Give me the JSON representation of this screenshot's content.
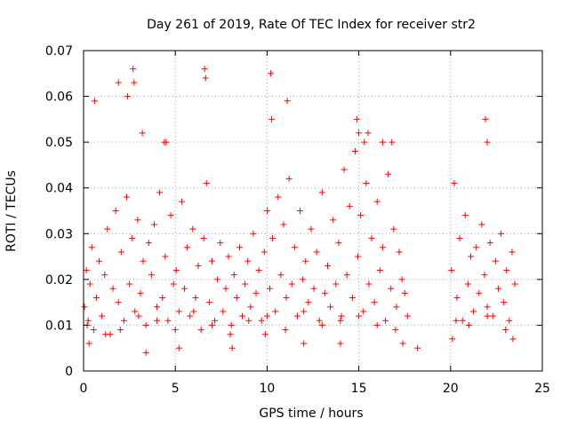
{
  "chart_data": {
    "type": "scatter",
    "title": "Day 261 of 2019, Rate Of TEC Index for receiver str2",
    "xlabel": "GPS time / hours",
    "ylabel": "ROTI / TECUs",
    "xlim": [
      0,
      25
    ],
    "ylim": [
      0,
      0.07
    ],
    "x_ticks": [
      0,
      5,
      10,
      15,
      20,
      25
    ],
    "y_ticks": [
      0,
      0.01,
      0.02,
      0.03,
      0.04,
      0.05,
      0.06,
      0.07
    ],
    "x_tick_labels": [
      "0",
      "5",
      "10",
      "15",
      "20",
      "25"
    ],
    "y_tick_labels": [
      "0",
      "0.01",
      "0.02",
      "0.03",
      "0.04",
      "0.05",
      "0.06",
      "0.07"
    ],
    "grid": true,
    "marker": "+",
    "color": "#ff0000",
    "series": [
      {
        "name": "str2",
        "x": [
          0.05,
          0.15,
          0.25,
          0.35,
          0.45,
          0.55,
          0.7,
          0.85,
          1.0,
          1.15,
          1.3,
          1.45,
          1.6,
          1.75,
          1.9,
          2.05,
          2.2,
          2.35,
          2.5,
          2.65,
          2.8,
          2.95,
          3.1,
          3.25,
          3.4,
          3.55,
          3.7,
          3.85,
          4.0,
          4.15,
          4.3,
          4.45,
          4.6,
          4.75,
          4.9,
          5.05,
          5.2,
          5.35,
          5.5,
          5.65,
          5.8,
          5.95,
          6.1,
          6.25,
          6.4,
          6.55,
          6.7,
          6.85,
          7.0,
          7.15,
          7.3,
          7.45,
          7.6,
          7.75,
          7.9,
          8.05,
          8.2,
          8.35,
          8.5,
          8.65,
          8.8,
          8.95,
          9.1,
          9.25,
          9.4,
          9.55,
          9.7,
          9.85,
          10.0,
          10.15,
          10.3,
          10.45,
          10.6,
          10.75,
          10.9,
          11.05,
          11.2,
          11.35,
          11.5,
          11.65,
          11.8,
          11.95,
          12.1,
          12.25,
          12.4,
          12.55,
          12.7,
          12.85,
          13.0,
          13.15,
          13.3,
          13.45,
          13.6,
          13.75,
          13.9,
          14.05,
          14.2,
          14.35,
          14.5,
          14.65,
          14.8,
          14.95,
          15.1,
          15.25,
          15.4,
          15.55,
          15.7,
          15.85,
          16.0,
          16.15,
          16.3,
          16.45,
          16.6,
          16.75,
          16.9,
          17.05,
          17.2,
          17.35,
          17.5,
          17.65,
          20.05,
          20.2,
          20.35,
          20.5,
          20.65,
          20.8,
          20.95,
          21.1,
          21.25,
          21.4,
          21.55,
          21.7,
          21.85,
          22.0,
          22.15,
          22.3,
          22.45,
          22.6,
          22.75,
          22.9,
          23.05,
          23.2,
          23.35,
          23.5,
          0.6,
          1.9,
          2.7,
          2.75,
          6.6,
          6.65,
          10.2,
          10.25,
          11.1,
          14.9,
          15.0,
          21.9,
          22.0,
          2.4,
          3.2,
          4.4,
          4.5,
          15.3,
          15.5,
          16.3,
          16.8,
          0.3,
          5.2,
          9.9,
          12.0,
          18.2,
          20.1,
          23.4,
          3.4,
          8.1,
          14.0,
          17.4,
          0.2,
          1.2,
          2.0,
          3.0,
          4.0,
          5.0,
          6.0,
          7.0,
          8.0,
          9.0,
          10.0,
          11.0,
          12.0,
          13.0,
          14.0,
          15.0,
          16.0,
          17.0,
          20.3,
          21.0,
          22.0,
          23.0
        ],
        "y": [
          0.014,
          0.022,
          0.011,
          0.019,
          0.027,
          0.009,
          0.016,
          0.024,
          0.012,
          0.021,
          0.031,
          0.008,
          0.018,
          0.035,
          0.015,
          0.026,
          0.011,
          0.038,
          0.019,
          0.029,
          0.013,
          0.033,
          0.017,
          0.024,
          0.01,
          0.028,
          0.021,
          0.032,
          0.014,
          0.039,
          0.016,
          0.025,
          0.011,
          0.034,
          0.019,
          0.022,
          0.013,
          0.037,
          0.018,
          0.027,
          0.012,
          0.031,
          0.016,
          0.023,
          0.009,
          0.029,
          0.041,
          0.015,
          0.024,
          0.011,
          0.02,
          0.028,
          0.013,
          0.018,
          0.025,
          0.01,
          0.021,
          0.016,
          0.027,
          0.012,
          0.019,
          0.024,
          0.014,
          0.03,
          0.017,
          0.022,
          0.011,
          0.026,
          0.035,
          0.018,
          0.029,
          0.013,
          0.038,
          0.021,
          0.032,
          0.016,
          0.042,
          0.019,
          0.027,
          0.012,
          0.035,
          0.02,
          0.024,
          0.015,
          0.031,
          0.018,
          0.026,
          0.011,
          0.039,
          0.017,
          0.023,
          0.014,
          0.033,
          0.019,
          0.028,
          0.012,
          0.044,
          0.021,
          0.036,
          0.016,
          0.048,
          0.025,
          0.034,
          0.013,
          0.041,
          0.019,
          0.029,
          0.015,
          0.037,
          0.022,
          0.027,
          0.011,
          0.043,
          0.018,
          0.031,
          0.014,
          0.026,
          0.02,
          0.017,
          0.012,
          0.022,
          0.041,
          0.016,
          0.029,
          0.011,
          0.034,
          0.019,
          0.025,
          0.013,
          0.027,
          0.017,
          0.032,
          0.021,
          0.014,
          0.028,
          0.012,
          0.024,
          0.018,
          0.03,
          0.015,
          0.022,
          0.011,
          0.026,
          0.019,
          0.059,
          0.063,
          0.066,
          0.063,
          0.066,
          0.064,
          0.065,
          0.055,
          0.059,
          0.055,
          0.052,
          0.055,
          0.05,
          0.06,
          0.052,
          0.05,
          0.05,
          0.05,
          0.052,
          0.05,
          0.05,
          0.006,
          0.005,
          0.008,
          0.006,
          0.005,
          0.007,
          0.007,
          0.004,
          0.005,
          0.006,
          0.006,
          0.01,
          0.008,
          0.009,
          0.012,
          0.011,
          0.009,
          0.013,
          0.01,
          0.008,
          0.011,
          0.012,
          0.009,
          0.013,
          0.01,
          0.011,
          0.012,
          0.01,
          0.009,
          0.011,
          0.01,
          0.012,
          0.009
        ]
      }
    ]
  }
}
